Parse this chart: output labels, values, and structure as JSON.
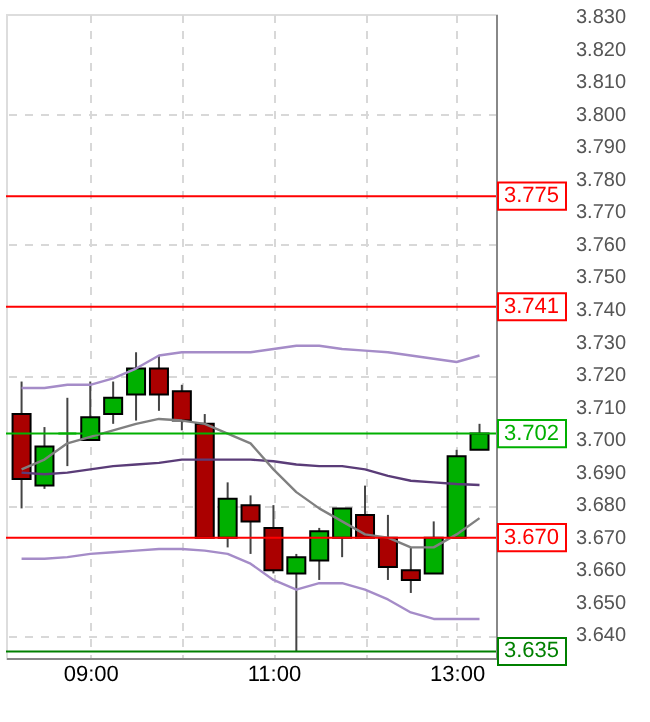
{
  "chart_data": {
    "type": "candlestick",
    "x": [
      8.25,
      8.5,
      8.75,
      9,
      9.25,
      9.5,
      9.75,
      10,
      10.25,
      10.5,
      10.75,
      11,
      11.25,
      11.5,
      11.75,
      12,
      12.25,
      12.5,
      12.75,
      13,
      13.25
    ],
    "ohlc": [
      [
        3.708,
        3.718,
        3.679,
        3.688
      ],
      [
        3.686,
        3.704,
        3.685,
        3.698
      ],
      [
        3.702,
        3.713,
        3.692,
        3.702
      ],
      [
        3.7,
        3.718,
        3.7,
        3.707
      ],
      [
        3.708,
        3.718,
        3.705,
        3.713
      ],
      [
        3.714,
        3.727,
        3.706,
        3.722
      ],
      [
        3.722,
        3.726,
        3.709,
        3.714
      ],
      [
        3.715,
        3.717,
        3.703,
        3.706
      ],
      [
        3.705,
        3.708,
        3.67,
        3.67
      ],
      [
        3.67,
        3.687,
        3.667,
        3.682
      ],
      [
        3.68,
        3.683,
        3.665,
        3.675
      ],
      [
        3.673,
        3.68,
        3.659,
        3.66
      ],
      [
        3.659,
        3.665,
        3.635,
        3.664
      ],
      [
        3.663,
        3.673,
        3.657,
        3.672
      ],
      [
        3.67,
        3.679,
        3.664,
        3.679
      ],
      [
        3.677,
        3.686,
        3.67,
        3.67
      ],
      [
        3.67,
        3.677,
        3.657,
        3.661
      ],
      [
        3.66,
        3.667,
        3.653,
        3.657
      ],
      [
        3.659,
        3.675,
        3.659,
        3.67
      ],
      [
        3.67,
        3.697,
        3.67,
        3.695
      ],
      [
        3.697,
        3.705,
        3.697,
        3.702
      ]
    ],
    "colors": [
      "#aa0000",
      "#00b000",
      "#00b000",
      "#00b000",
      "#00b000",
      "#00b000",
      "#aa0000",
      "#aa0000",
      "#aa0000",
      "#00b000",
      "#aa0000",
      "#aa0000",
      "#00b000",
      "#00b000",
      "#00b000",
      "#aa0000",
      "#aa0000",
      "#aa0000",
      "#00b000",
      "#00b000",
      "#00b000"
    ],
    "series": [
      {
        "type": "line",
        "color": "#a58cc8",
        "values": [
          3.716,
          3.716,
          3.717,
          3.717,
          3.719,
          3.722,
          3.726,
          3.727,
          3.727,
          3.727,
          3.727,
          3.728,
          3.729,
          3.729,
          3.728,
          3.7275,
          3.727,
          3.726,
          3.725,
          3.724,
          3.726
        ]
      },
      {
        "type": "line",
        "color": "#5a3c78",
        "values": [
          3.69,
          3.6895,
          3.69,
          3.691,
          3.692,
          3.6925,
          3.693,
          3.694,
          3.694,
          3.694,
          3.694,
          3.6935,
          3.6925,
          3.692,
          3.692,
          3.691,
          3.689,
          3.6875,
          3.687,
          3.6865,
          3.6862
        ]
      },
      {
        "type": "line",
        "color": "#a58cc8",
        "values": [
          3.6635,
          3.6635,
          3.664,
          3.665,
          3.6655,
          3.666,
          3.6665,
          3.6665,
          3.666,
          3.665,
          3.662,
          3.657,
          3.654,
          3.656,
          3.656,
          3.654,
          3.651,
          3.647,
          3.645,
          3.645,
          3.645
        ]
      },
      {
        "type": "line",
        "color": "#808080",
        "values": [
          3.691,
          3.694,
          3.699,
          3.701,
          3.703,
          3.705,
          3.7065,
          3.706,
          3.705,
          3.702,
          3.699,
          3.691,
          3.684,
          3.679,
          3.675,
          3.671,
          3.67,
          3.667,
          3.667,
          3.671,
          3.676
        ]
      }
    ],
    "ref_lines": [
      {
        "axis": "y",
        "value": 3.775,
        "label": "3.775",
        "color": "#ff0000"
      },
      {
        "axis": "y",
        "value": 3.741,
        "label": "3.741",
        "color": "#ff0000"
      },
      {
        "axis": "y",
        "value": 3.702,
        "label": "3.702",
        "color": "#00b000"
      },
      {
        "axis": "y",
        "value": 3.67,
        "label": "3.670",
        "color": "#ff0000"
      },
      {
        "axis": "y",
        "value": 3.635,
        "label": "3.635",
        "color": "#008000"
      }
    ],
    "xlim": [
      8.08,
      13.43
    ],
    "xticks": [
      {
        "value": 9,
        "label": "09:00"
      },
      {
        "value": 10,
        "label": null
      },
      {
        "value": 11,
        "label": "11:00"
      },
      {
        "value": 12,
        "label": null
      },
      {
        "value": 13,
        "label": "13:00"
      }
    ],
    "ylim": [
      3.633,
      3.831
    ],
    "yticks": [
      {
        "value": 3.64,
        "label": "3.640"
      },
      {
        "value": 3.65,
        "label": "3.650"
      },
      {
        "value": 3.66,
        "label": "3.660"
      },
      {
        "value": 3.67,
        "label": "3.670"
      },
      {
        "value": 3.68,
        "label": "3.680"
      },
      {
        "value": 3.69,
        "label": "3.690"
      },
      {
        "value": 3.7,
        "label": "3.700"
      },
      {
        "value": 3.71,
        "label": "3.710"
      },
      {
        "value": 3.72,
        "label": "3.720"
      },
      {
        "value": 3.73,
        "label": "3.730"
      },
      {
        "value": 3.74,
        "label": "3.740"
      },
      {
        "value": 3.75,
        "label": "3.750"
      },
      {
        "value": 3.76,
        "label": "3.760"
      },
      {
        "value": 3.77,
        "label": "3.770"
      },
      {
        "value": 3.78,
        "label": "3.780"
      },
      {
        "value": 3.79,
        "label": "3.790"
      },
      {
        "value": 3.8,
        "label": "3.800"
      },
      {
        "value": 3.81,
        "label": "3.810"
      },
      {
        "value": 3.82,
        "label": "3.820"
      },
      {
        "value": 3.83,
        "label": "3.830"
      }
    ],
    "grid": true
  }
}
